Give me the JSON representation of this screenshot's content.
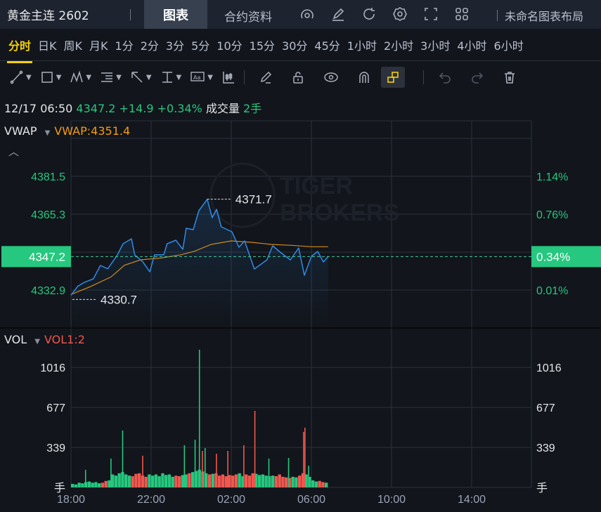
{
  "header": {
    "symbol": "黄金主连 2602",
    "tab_chart": "图表",
    "tab_contract": "合约资料",
    "layout_name": "未命名图表布局",
    "icons": [
      "gauge-icon",
      "edit-icon",
      "refresh-icon",
      "gear-icon",
      "fullscreen-icon",
      "grid-layout-icon"
    ]
  },
  "periods": [
    "分时",
    "日K",
    "周K",
    "月K",
    "1分",
    "2分",
    "3分",
    "5分",
    "10分",
    "15分",
    "30分",
    "45分",
    "1小时",
    "2小时",
    "3小时",
    "4小时",
    "6小时"
  ],
  "active_period": "分时",
  "toolbar": {
    "tools": [
      "line-tool-icon",
      "rectangle-tool-icon",
      "pattern-tool-icon",
      "fibonacci-tool-icon",
      "arrow-tool-icon",
      "measure-tool-icon",
      "text-tool-icon",
      "candle-tool-icon"
    ],
    "actions": [
      "pencil-icon",
      "unlock-icon",
      "eye-icon",
      "magnet-icon",
      "link-icon",
      "undo-icon",
      "redo-icon",
      "trash-icon"
    ],
    "active_action": "link-icon"
  },
  "info": {
    "datetime": "12/17 06:50",
    "price": "4347.2",
    "change": "+14.9",
    "change_pct": "+0.34%",
    "volume_label": "成交量",
    "volume": "2手"
  },
  "watermark": "TIGER BROKERS",
  "colors": {
    "up": "#26c77f",
    "down": "#f0574f",
    "price_line": "#2f8be6",
    "vwap": "#d08a1a",
    "accent": "#f5d10a"
  },
  "chart_data": [
    {
      "type": "line",
      "indicator": "VWAP",
      "indicator_value": "VWAP:4351.4",
      "x_ticks": [
        "18:00",
        "22:00",
        "02:00",
        "06:00",
        "10:00",
        "14:00"
      ],
      "y_ticks_left": [
        "4381.5",
        "4365.3",
        "4332.9"
      ],
      "y_ticks_right": [
        "1.14%",
        "0.76%",
        "0.01%"
      ],
      "ylim": [
        4332.9,
        4397.7
      ],
      "current_price": "4347.2",
      "current_pct": "0.34%",
      "high_label": "4371.7",
      "low_label": "4330.7",
      "series": [
        {
          "type": "price",
          "points": [
            [
              "18:00",
              4330.7
            ],
            [
              "18:20",
              4334.5
            ],
            [
              "18:40",
              4336.2
            ],
            [
              "19:07",
              4337.7
            ],
            [
              "19:28",
              4343.4
            ],
            [
              "19:50",
              4342.0
            ],
            [
              "20:19",
              4347.9
            ],
            [
              "20:36",
              4352.7
            ],
            [
              "21:01",
              4354.8
            ],
            [
              "21:11",
              4347.9
            ],
            [
              "21:35",
              4345.0
            ],
            [
              "21:56",
              4340.7
            ],
            [
              "22:10",
              4348.0
            ],
            [
              "22:38",
              4348.0
            ],
            [
              "22:48",
              4352.7
            ],
            [
              "23:14",
              4354.2
            ],
            [
              "23:35",
              4350.3
            ],
            [
              "23:45",
              4359.3
            ],
            [
              "00:06",
              4358.7
            ],
            [
              "00:23",
              4366.8
            ],
            [
              "00:48",
              4371.7
            ],
            [
              "01:03",
              4363.8
            ],
            [
              "01:16",
              4367.4
            ],
            [
              "01:30",
              4359.9
            ],
            [
              "02:02",
              4357.8
            ],
            [
              "02:23",
              4351.2
            ],
            [
              "02:40",
              4353.9
            ],
            [
              "03:09",
              4341.9
            ],
            [
              "03:47",
              4345.8
            ],
            [
              "04:04",
              4351.8
            ],
            [
              "04:29",
              4348.8
            ],
            [
              "04:57",
              4345.8
            ],
            [
              "05:22",
              4350.9
            ],
            [
              "05:39",
              4339.2
            ],
            [
              "06:00",
              4347.3
            ],
            [
              "06:19",
              4349.4
            ],
            [
              "06:36",
              4344.9
            ],
            [
              "06:50",
              4347.2
            ]
          ]
        },
        {
          "type": "vwap",
          "points": [
            [
              "18:00",
              4331.0
            ],
            [
              "19:00",
              4334.5
            ],
            [
              "20:00",
              4338.5
            ],
            [
              "20:40",
              4343.5
            ],
            [
              "21:28",
              4345.8
            ],
            [
              "22:30",
              4346.6
            ],
            [
              "23:30",
              4348.0
            ],
            [
              "00:10",
              4349.5
            ],
            [
              "01:00",
              4352.4
            ],
            [
              "02:00",
              4353.9
            ],
            [
              "03:00",
              4353.3
            ],
            [
              "04:00",
              4352.4
            ],
            [
              "05:00",
              4352.0
            ],
            [
              "06:00",
              4351.4
            ],
            [
              "06:50",
              4351.4
            ]
          ]
        }
      ]
    },
    {
      "type": "bar",
      "indicator": "VOL",
      "indicator_value": "VOL1:2",
      "unit": "手",
      "y_ticks": [
        "1016",
        "677",
        "339"
      ],
      "ylim": [
        0,
        1016
      ],
      "volume_10min": [
        30,
        25,
        40,
        35,
        45,
        50,
        40,
        45,
        35,
        40,
        55,
        60,
        110,
        100,
        120,
        130,
        110,
        100,
        95,
        115,
        120,
        100,
        90,
        110,
        100,
        110,
        95,
        120,
        105,
        110,
        90,
        100,
        95,
        105,
        110,
        120,
        130,
        140,
        150,
        135,
        120,
        110,
        115,
        120,
        100,
        110,
        95,
        105,
        100,
        110,
        120,
        95,
        110,
        100,
        120,
        115,
        105,
        110,
        100,
        95,
        100,
        95,
        110,
        90,
        85,
        80,
        90,
        85,
        100,
        120,
        110,
        90,
        60,
        50,
        55,
        45,
        40
      ],
      "spikes": [
        [
          "18:42",
          149,
          "up"
        ],
        [
          "19:58",
          244,
          "up"
        ],
        [
          "20:33",
          482,
          "up"
        ],
        [
          "21:33",
          268,
          "down"
        ],
        [
          "23:38",
          357,
          "up"
        ],
        [
          "00:10",
          404,
          "up"
        ],
        [
          "00:23",
          1166,
          "up"
        ],
        [
          "00:32",
          309,
          "down"
        ],
        [
          "00:40",
          333,
          "up"
        ],
        [
          "01:14",
          285,
          "down"
        ],
        [
          "01:48",
          309,
          "down"
        ],
        [
          "02:36",
          357,
          "down"
        ],
        [
          "03:09",
          648,
          "down"
        ],
        [
          "03:51",
          244,
          "up"
        ],
        [
          "04:50",
          250,
          "up"
        ],
        [
          "05:35",
          470,
          "down"
        ],
        [
          "05:39",
          506,
          "down"
        ],
        [
          "05:50",
          184,
          "up"
        ]
      ]
    }
  ]
}
